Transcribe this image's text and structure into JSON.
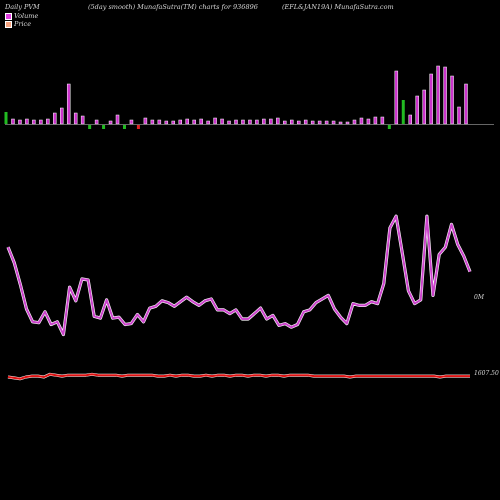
{
  "header": {
    "left": "Daily PVM",
    "smooth": "(5day smooth) MunafaSutra(TM) charts for 936896",
    "right": "(EFL&JAN19A) MunafaSutra.com"
  },
  "legend": [
    {
      "label": "Volume",
      "color": "#e040e0"
    },
    {
      "label": "Price",
      "color": "#f6a37f"
    }
  ],
  "labels": {
    "volume_end": "0M",
    "price_end": "1607.50"
  },
  "colors": {
    "volume_line": "#cc44cc",
    "volume_glow": "#ff88ff",
    "price_line": "#dd1111",
    "up_bar": "#cc33cc",
    "down_bar": "#22bb22",
    "down_red": "#dd2222",
    "axis": "#888888"
  },
  "chart_data": {
    "type": "bar+line",
    "bars": {
      "values": [
        12,
        5,
        4,
        5,
        4,
        4,
        5,
        11,
        16,
        40,
        11,
        8,
        2,
        4,
        2,
        3,
        9,
        2,
        4,
        5,
        6,
        4,
        4,
        3,
        3,
        4,
        5,
        4,
        5,
        3,
        6,
        5,
        3,
        4,
        4,
        4,
        4,
        5,
        5,
        6,
        3,
        4,
        3,
        4,
        3,
        3,
        3,
        3,
        2,
        2,
        4,
        6,
        5,
        7,
        7,
        3,
        53,
        24,
        9,
        28,
        34,
        50,
        58,
        57,
        48,
        17,
        40
      ],
      "direction": [
        "d",
        "u",
        "u",
        "u",
        "u",
        "u",
        "u",
        "u",
        "u",
        "u",
        "u",
        "u",
        "d",
        "u",
        "d",
        "u",
        "u",
        "d",
        "u",
        "d",
        "u",
        "u",
        "u",
        "u",
        "u",
        "u",
        "u",
        "u",
        "u",
        "u",
        "u",
        "u",
        "u",
        "u",
        "u",
        "u",
        "u",
        "u",
        "u",
        "u",
        "u",
        "u",
        "u",
        "u",
        "u",
        "u",
        "u",
        "u",
        "u",
        "u",
        "u",
        "u",
        "u",
        "u",
        "u",
        "d",
        "u",
        "d",
        "u",
        "u",
        "u",
        "u",
        "u",
        "u",
        "u",
        "u",
        "u"
      ]
    },
    "volume": [
      146,
      129,
      105,
      78,
      64,
      63,
      75,
      61,
      64,
      50,
      102,
      87,
      111,
      110,
      70,
      68,
      88,
      68,
      69,
      61,
      62,
      72,
      64,
      79,
      81,
      87,
      85,
      81,
      86,
      91,
      86,
      82,
      87,
      89,
      77,
      77,
      73,
      77,
      67,
      67,
      73,
      79,
      67,
      71,
      60,
      62,
      58,
      61,
      75,
      77,
      85,
      89,
      93,
      78,
      69,
      62,
      84,
      82,
      82,
      86,
      84,
      106,
      167,
      180,
      140,
      98,
      84,
      88,
      180,
      93,
      138,
      146,
      171,
      149,
      136,
      119
    ],
    "price": [
      10,
      9,
      8,
      10,
      11,
      11,
      10,
      13,
      12,
      11,
      12,
      12,
      12,
      12,
      13,
      12,
      12,
      12,
      12,
      11,
      12,
      12,
      12,
      12,
      12,
      11,
      11,
      12,
      11,
      12,
      12,
      11,
      11,
      12,
      11,
      12,
      12,
      11,
      12,
      12,
      11,
      12,
      12,
      11,
      12,
      12,
      11,
      12,
      12,
      12,
      12,
      11,
      11,
      11,
      11,
      11,
      11,
      10,
      11,
      11,
      11,
      11,
      11,
      11,
      11,
      11,
      11,
      11,
      11,
      11,
      11,
      11,
      10,
      11,
      11,
      11,
      11,
      11
    ]
  }
}
